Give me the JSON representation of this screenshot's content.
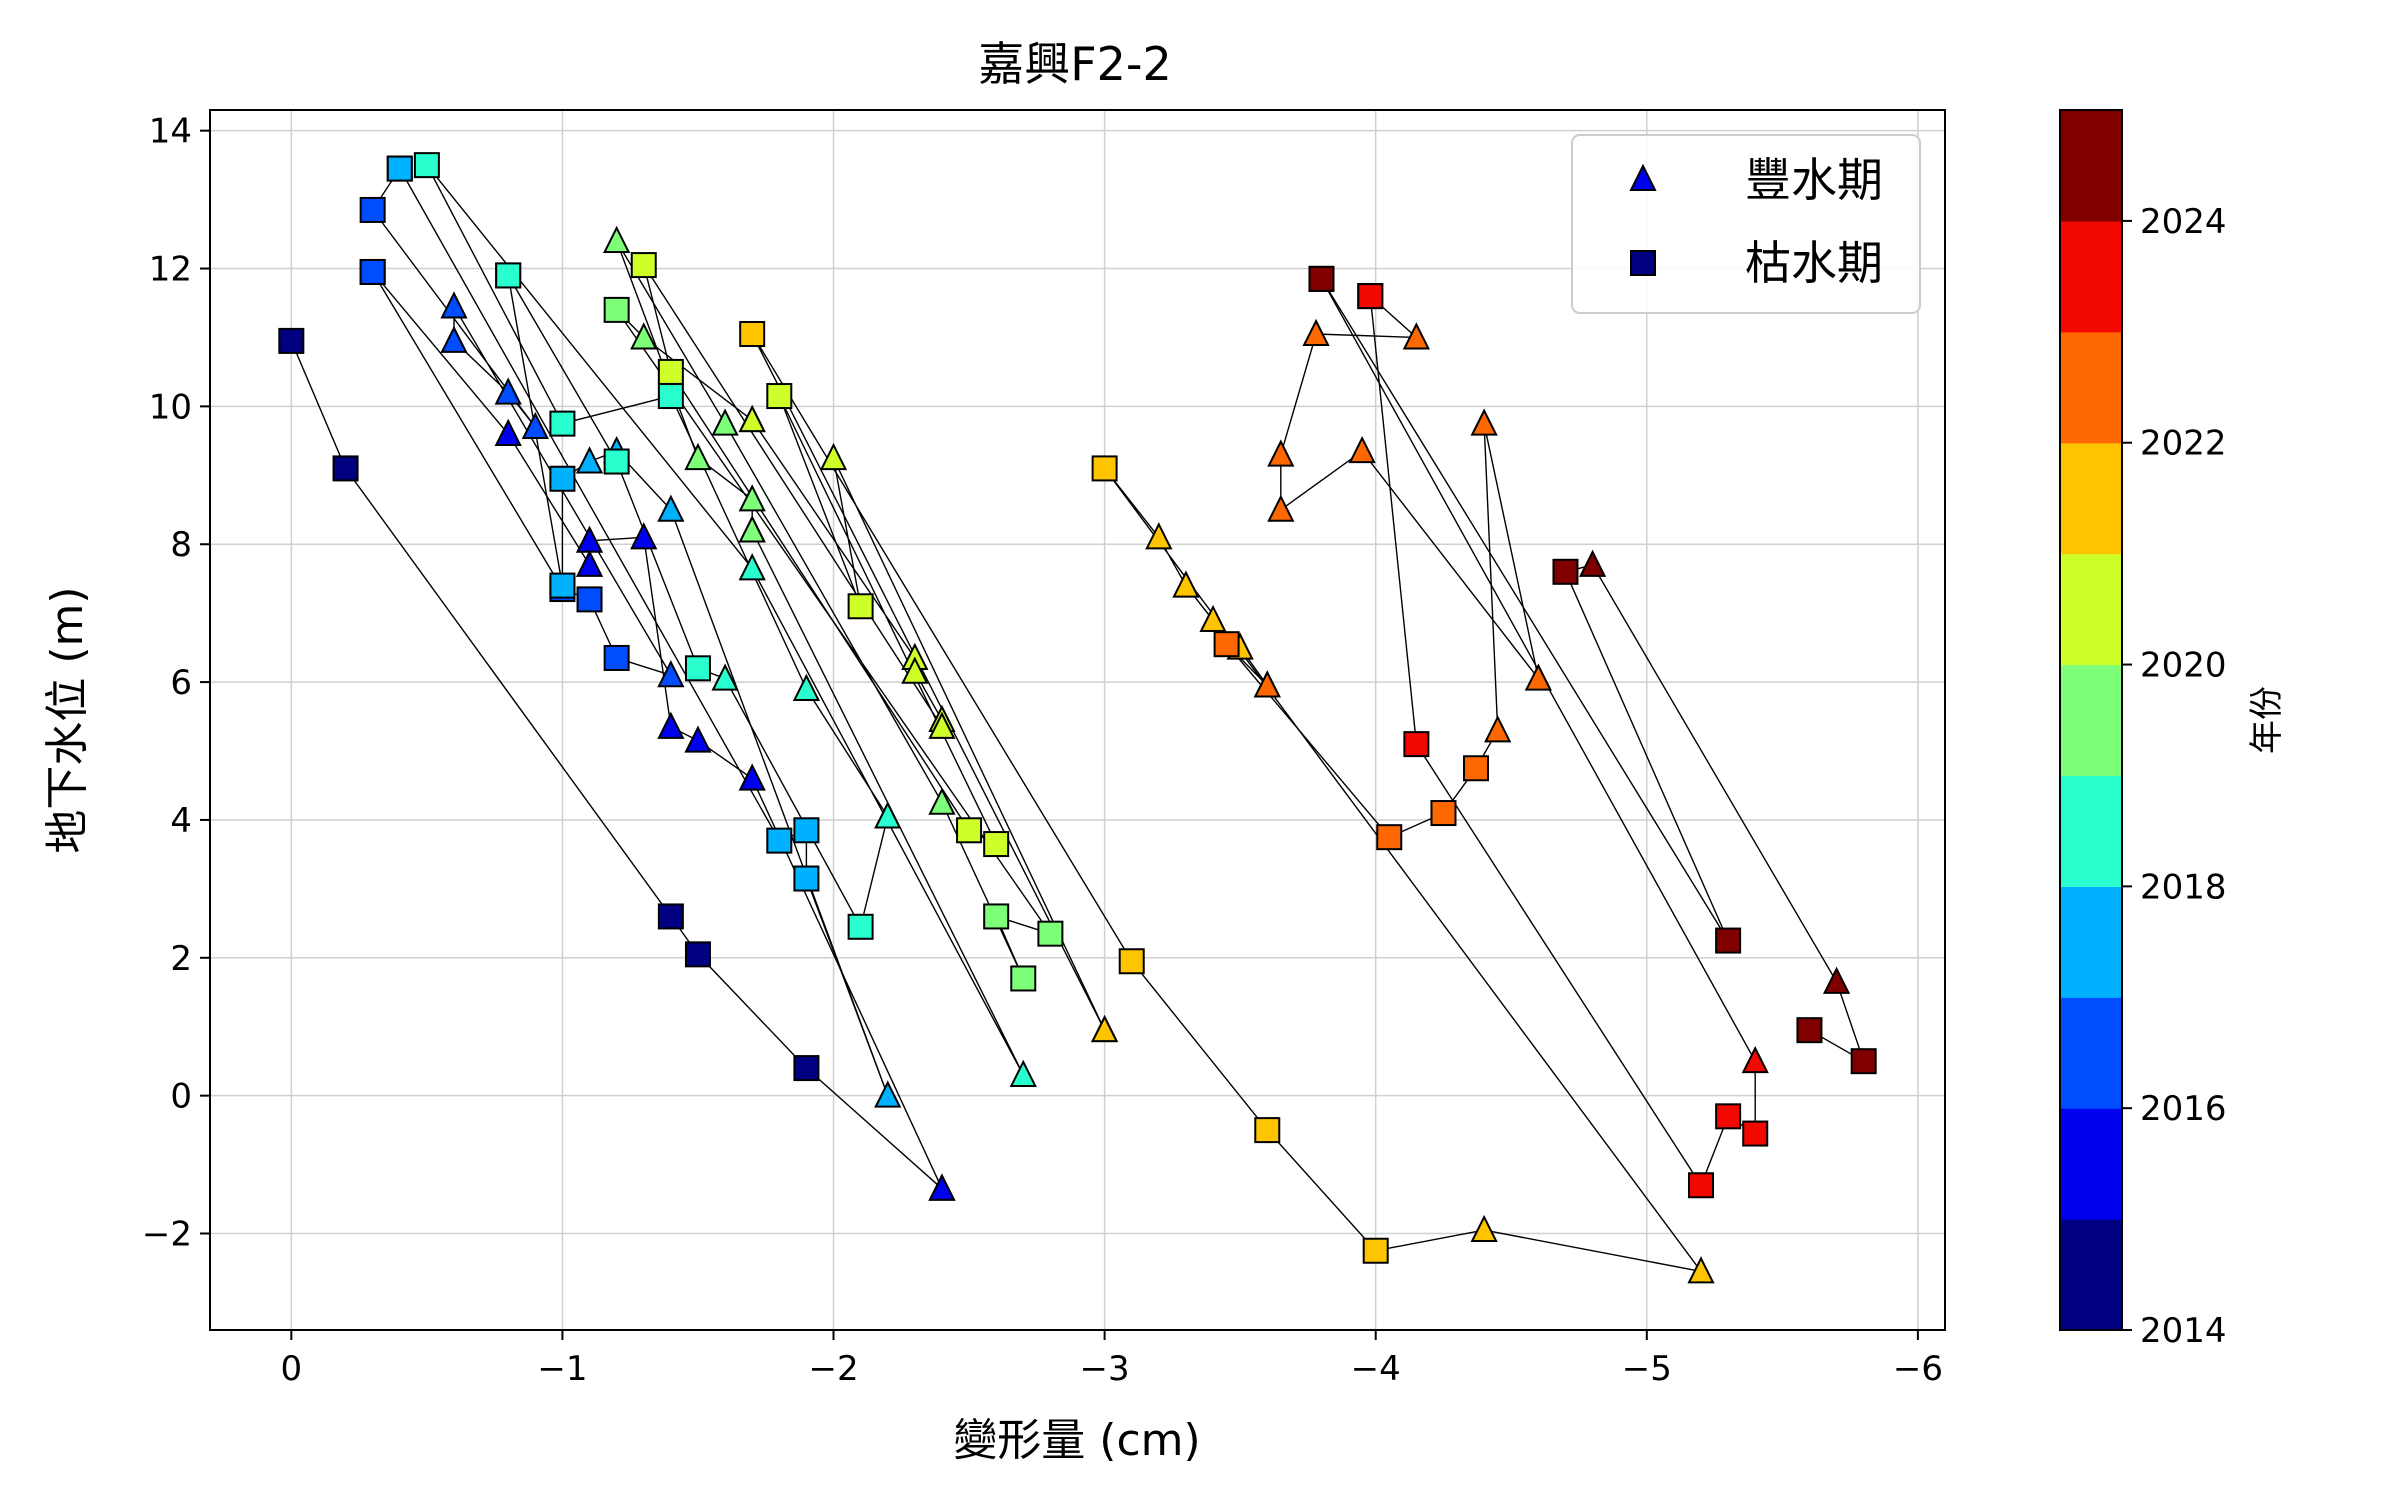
{
  "chart_data": {
    "type": "scatter",
    "title": "嘉興F2-2",
    "xlabel": "變形量 (cm)",
    "ylabel": "地下水位 (m)",
    "xlim": [
      0.3,
      -6.1
    ],
    "ylim": [
      -3.4,
      14.3
    ],
    "x_inverted": true,
    "xticks": [
      0,
      -1,
      -2,
      -3,
      -4,
      -5,
      -6
    ],
    "xtick_labels": [
      "0",
      "−1",
      "−2",
      "−3",
      "−4",
      "−5",
      "−6"
    ],
    "yticks": [
      -2,
      0,
      2,
      4,
      6,
      8,
      10,
      12,
      14
    ],
    "ytick_labels": [
      "−2",
      "0",
      "2",
      "4",
      "6",
      "8",
      "10",
      "12",
      "14"
    ],
    "grid": true,
    "legend": {
      "position": "top-right",
      "entries": [
        {
          "label": "豐水期",
          "marker": "triangle"
        },
        {
          "label": "枯水期",
          "marker": "square"
        }
      ]
    },
    "colorbar": {
      "label": "年份",
      "range": [
        2014,
        2025
      ],
      "ticks": [
        2014,
        2016,
        2018,
        2020,
        2022,
        2024
      ],
      "colormap": "jet",
      "colors": [
        "#000080",
        "#0000f1",
        "#004dff",
        "#00b1ff",
        "#29ffce",
        "#7dff7a",
        "#ceff29",
        "#ffc400",
        "#ff6800",
        "#f10800",
        "#800000"
      ]
    },
    "series": [
      {
        "name": "2014",
        "color": "#000080",
        "points": [
          {
            "x": 0.0,
            "y": 10.95,
            "m": "s"
          },
          {
            "x": -0.2,
            "y": 9.1,
            "m": "s"
          },
          {
            "x": -1.4,
            "y": 2.6,
            "m": "s"
          },
          {
            "x": -1.5,
            "y": 2.05,
            "m": "s"
          },
          {
            "x": -1.9,
            "y": 0.4,
            "m": "s"
          },
          {
            "x": -2.4,
            "y": -1.35,
            "m": "t"
          }
        ]
      },
      {
        "name": "2015",
        "color": "#0000f1",
        "points": [
          {
            "x": -2.4,
            "y": -1.35,
            "m": "t"
          },
          {
            "x": -1.7,
            "y": 4.6,
            "m": "t"
          },
          {
            "x": -1.5,
            "y": 5.15,
            "m": "t"
          },
          {
            "x": -1.4,
            "y": 5.35,
            "m": "t"
          },
          {
            "x": -1.3,
            "y": 8.1,
            "m": "t"
          },
          {
            "x": -1.1,
            "y": 8.05,
            "m": "t"
          },
          {
            "x": -1.1,
            "y": 7.7,
            "m": "t"
          },
          {
            "x": -0.8,
            "y": 9.6,
            "m": "t"
          },
          {
            "x": -0.3,
            "y": 11.95,
            "m": "s"
          }
        ]
      },
      {
        "name": "2016",
        "color": "#004dff",
        "points": [
          {
            "x": -0.3,
            "y": 11.95,
            "m": "s"
          },
          {
            "x": -1.0,
            "y": 7.35,
            "m": "s"
          },
          {
            "x": -1.1,
            "y": 7.2,
            "m": "s"
          },
          {
            "x": -1.2,
            "y": 6.35,
            "m": "s"
          },
          {
            "x": -1.4,
            "y": 6.1,
            "m": "t"
          },
          {
            "x": -0.6,
            "y": 11.45,
            "m": "t"
          },
          {
            "x": -0.6,
            "y": 10.95,
            "m": "t"
          },
          {
            "x": -0.8,
            "y": 10.2,
            "m": "t"
          },
          {
            "x": -0.9,
            "y": 9.7,
            "m": "t"
          },
          {
            "x": -0.3,
            "y": 12.85,
            "m": "s"
          },
          {
            "x": -0.4,
            "y": 13.45,
            "m": "s"
          }
        ]
      },
      {
        "name": "2017",
        "color": "#00b1ff",
        "points": [
          {
            "x": -0.4,
            "y": 13.45,
            "m": "s"
          },
          {
            "x": -1.8,
            "y": 3.7,
            "m": "s"
          },
          {
            "x": -1.9,
            "y": 3.85,
            "m": "s"
          },
          {
            "x": -1.9,
            "y": 3.15,
            "m": "s"
          },
          {
            "x": -2.2,
            "y": 0.0,
            "m": "t"
          },
          {
            "x": -1.4,
            "y": 8.5,
            "m": "t"
          },
          {
            "x": -1.2,
            "y": 9.35,
            "m": "t"
          },
          {
            "x": -1.1,
            "y": 9.2,
            "m": "t"
          },
          {
            "x": -1.0,
            "y": 8.95,
            "m": "s"
          },
          {
            "x": -1.0,
            "y": 7.4,
            "m": "s"
          },
          {
            "x": -0.8,
            "y": 11.9,
            "m": "s"
          }
        ]
      },
      {
        "name": "2018",
        "color": "#29ffce",
        "points": [
          {
            "x": -0.8,
            "y": 11.9,
            "m": "s"
          },
          {
            "x": -1.2,
            "y": 9.2,
            "m": "s"
          },
          {
            "x": -1.5,
            "y": 6.2,
            "m": "s"
          },
          {
            "x": -1.6,
            "y": 6.05,
            "m": "t"
          },
          {
            "x": -2.1,
            "y": 2.45,
            "m": "s"
          },
          {
            "x": -2.2,
            "y": 4.05,
            "m": "t"
          },
          {
            "x": -1.9,
            "y": 5.9,
            "m": "t"
          },
          {
            "x": -1.4,
            "y": 10.15,
            "m": "s"
          },
          {
            "x": -1.0,
            "y": 9.75,
            "m": "s"
          },
          {
            "x": -0.5,
            "y": 13.5,
            "m": "s"
          },
          {
            "x": -1.7,
            "y": 7.65,
            "m": "t"
          },
          {
            "x": -2.7,
            "y": 0.3,
            "m": "t"
          },
          {
            "x": -1.7,
            "y": 8.2,
            "m": "t"
          }
        ]
      },
      {
        "name": "2019",
        "color": "#7dff7a",
        "points": [
          {
            "x": -1.7,
            "y": 8.2,
            "m": "t"
          },
          {
            "x": -1.7,
            "y": 8.65,
            "m": "t"
          },
          {
            "x": -1.5,
            "y": 9.25,
            "m": "t"
          },
          {
            "x": -1.2,
            "y": 12.4,
            "m": "t"
          },
          {
            "x": -1.6,
            "y": 9.75,
            "m": "t"
          },
          {
            "x": -2.4,
            "y": 4.25,
            "m": "t"
          },
          {
            "x": -2.7,
            "y": 1.7,
            "m": "s"
          },
          {
            "x": -2.6,
            "y": 2.6,
            "m": "s"
          },
          {
            "x": -2.8,
            "y": 2.35,
            "m": "s"
          },
          {
            "x": -1.2,
            "y": 11.4,
            "m": "s"
          },
          {
            "x": -1.3,
            "y": 11.0,
            "m": "t"
          },
          {
            "x": -1.7,
            "y": 9.8,
            "m": "t"
          }
        ]
      },
      {
        "name": "2020",
        "color": "#ceff29",
        "points": [
          {
            "x": -1.7,
            "y": 9.8,
            "m": "t"
          },
          {
            "x": -2.3,
            "y": 6.35,
            "m": "t"
          },
          {
            "x": -2.3,
            "y": 6.15,
            "m": "t"
          },
          {
            "x": -2.4,
            "y": 5.45,
            "m": "t"
          },
          {
            "x": -2.4,
            "y": 5.35,
            "m": "t"
          },
          {
            "x": -1.3,
            "y": 12.05,
            "m": "s"
          },
          {
            "x": -1.4,
            "y": 10.5,
            "m": "s"
          },
          {
            "x": -2.5,
            "y": 3.85,
            "m": "s"
          },
          {
            "x": -2.6,
            "y": 3.65,
            "m": "s"
          },
          {
            "x": -1.8,
            "y": 10.15,
            "m": "s"
          },
          {
            "x": -2.1,
            "y": 7.1,
            "m": "s"
          },
          {
            "x": -2.0,
            "y": 9.25,
            "m": "t"
          },
          {
            "x": -3.0,
            "y": 0.95,
            "m": "t"
          }
        ]
      },
      {
        "name": "2021",
        "color": "#ffc400",
        "points": [
          {
            "x": -3.0,
            "y": 0.95,
            "m": "t"
          },
          {
            "x": -1.7,
            "y": 11.05,
            "m": "s"
          },
          {
            "x": -3.1,
            "y": 1.95,
            "m": "s"
          },
          {
            "x": -3.6,
            "y": -0.5,
            "m": "s"
          },
          {
            "x": -4.0,
            "y": -2.25,
            "m": "s"
          },
          {
            "x": -4.4,
            "y": -1.95,
            "m": "t"
          },
          {
            "x": -5.2,
            "y": -2.55,
            "m": "t"
          },
          {
            "x": -3.0,
            "y": 9.1,
            "m": "s"
          },
          {
            "x": -3.2,
            "y": 8.1,
            "m": "t"
          },
          {
            "x": -3.3,
            "y": 7.4,
            "m": "t"
          },
          {
            "x": -3.4,
            "y": 6.9,
            "m": "t"
          },
          {
            "x": -3.5,
            "y": 6.5,
            "m": "t"
          },
          {
            "x": -3.6,
            "y": 5.95,
            "m": "t"
          }
        ]
      },
      {
        "name": "2022",
        "color": "#ff6800",
        "points": [
          {
            "x": -3.6,
            "y": 5.95,
            "m": "t"
          },
          {
            "x": -3.45,
            "y": 6.55,
            "m": "s"
          },
          {
            "x": -4.05,
            "y": 3.75,
            "m": "s"
          },
          {
            "x": -4.25,
            "y": 4.1,
            "m": "s"
          },
          {
            "x": -4.37,
            "y": 4.75,
            "m": "s"
          },
          {
            "x": -4.45,
            "y": 5.3,
            "m": "t"
          },
          {
            "x": -4.4,
            "y": 9.75,
            "m": "t"
          },
          {
            "x": -4.6,
            "y": 6.05,
            "m": "t"
          },
          {
            "x": -3.95,
            "y": 9.35,
            "m": "t"
          },
          {
            "x": -3.65,
            "y": 8.5,
            "m": "t"
          },
          {
            "x": -3.65,
            "y": 9.3,
            "m": "t"
          },
          {
            "x": -3.78,
            "y": 11.05,
            "m": "t"
          },
          {
            "x": -4.15,
            "y": 11.0,
            "m": "t"
          },
          {
            "x": -3.98,
            "y": 11.6,
            "m": "s"
          }
        ]
      },
      {
        "name": "2023",
        "color": "#f10800",
        "points": [
          {
            "x": -3.98,
            "y": 11.6,
            "m": "s"
          },
          {
            "x": -4.15,
            "y": 5.1,
            "m": "s"
          },
          {
            "x": -5.2,
            "y": -1.3,
            "m": "s"
          },
          {
            "x": -5.3,
            "y": -0.3,
            "m": "s"
          },
          {
            "x": -5.4,
            "y": -0.55,
            "m": "s"
          },
          {
            "x": -5.4,
            "y": 0.5,
            "m": "t"
          },
          {
            "x": -3.8,
            "y": 11.85,
            "m": "s"
          }
        ]
      },
      {
        "name": "2024",
        "color": "#800000",
        "points": [
          {
            "x": -3.8,
            "y": 11.85,
            "m": "s"
          },
          {
            "x": -5.3,
            "y": 2.25,
            "m": "s"
          },
          {
            "x": -4.7,
            "y": 7.6,
            "m": "s"
          },
          {
            "x": -4.8,
            "y": 7.7,
            "m": "t"
          },
          {
            "x": -5.7,
            "y": 1.65,
            "m": "t"
          },
          {
            "x": -5.8,
            "y": 0.5,
            "m": "s"
          },
          {
            "x": -5.6,
            "y": 0.95,
            "m": "s"
          }
        ]
      }
    ]
  }
}
